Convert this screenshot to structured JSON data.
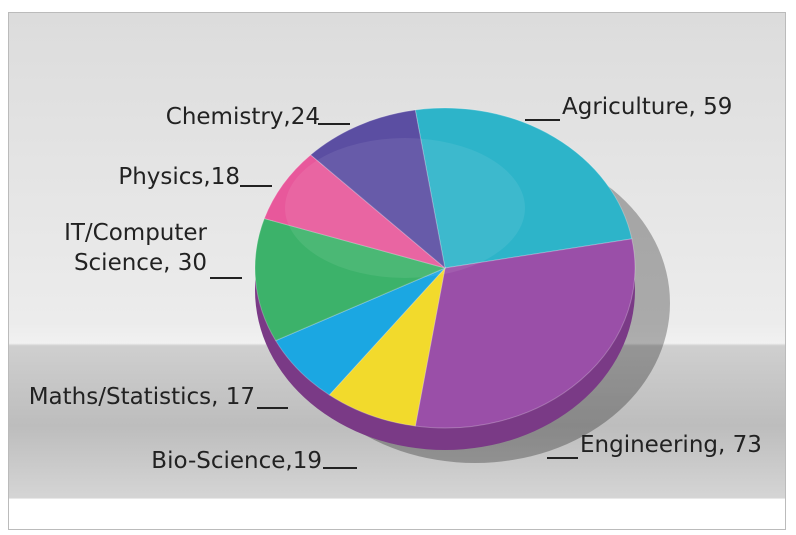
{
  "chart_data": {
    "type": "pie",
    "value_labels": [
      "Agriculture, 59",
      "Engineering, 73",
      "Bio-Science,19",
      "Maths/Statistics, 17",
      "IT/Computer Science, 30",
      "Physics,18",
      "Chemistry,24"
    ],
    "values": [
      59,
      73,
      19,
      17,
      30,
      18,
      24
    ],
    "colors": [
      "#2db4c9",
      "#9a4fa8",
      "#f2da2c",
      "#1ba7e2",
      "#3cb26a",
      "#e8589b",
      "#5b4ea2"
    ]
  }
}
